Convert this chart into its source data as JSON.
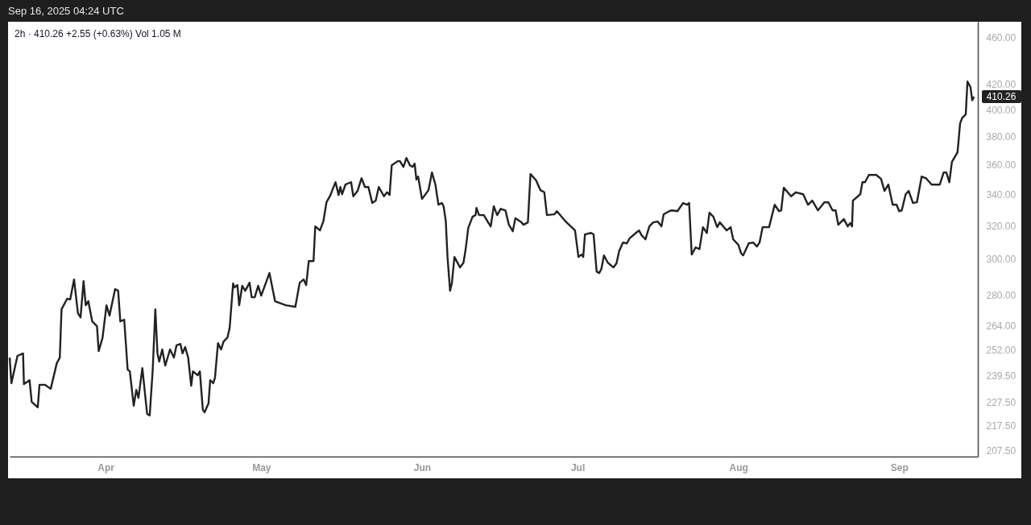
{
  "chart_data": {
    "type": "line",
    "title": "2h · 410.26 +2.55 (+0.63%) Vol 1.05 M",
    "annotations": [
      "Sep 16, 2025 04:24 UTC",
      "410.26"
    ],
    "log": "y",
    "line_style": "solid",
    "marker": "none",
    "xlim": [
      "2025-03-13T12:00",
      "2025-09-16T04:00"
    ],
    "xticks": [
      {
        "value": "2025-04-01T00:00",
        "label": "Apr"
      },
      {
        "value": "2025-05-01T00:00",
        "label": "May"
      },
      {
        "value": "2025-06-01T00:00",
        "label": "Jun"
      },
      {
        "value": "2025-07-01T00:00",
        "label": "Jul"
      },
      {
        "value": "2025-08-01T00:00",
        "label": "Aug"
      },
      {
        "value": "2025-09-01T00:00",
        "label": "Sep"
      }
    ],
    "ylim": [
      205,
      474
    ],
    "yticks": [
      {
        "value": 207.5,
        "label": "207.50"
      },
      {
        "value": 217.5,
        "label": "217.50"
      },
      {
        "value": 227.5,
        "label": "227.50"
      },
      {
        "value": 239.5,
        "label": "239.50"
      },
      {
        "value": 252,
        "label": "252.00"
      },
      {
        "value": 264,
        "label": "264.00"
      },
      {
        "value": 280,
        "label": "280.00"
      },
      {
        "value": 300,
        "label": "300.00"
      },
      {
        "value": 320,
        "label": "320.00"
      },
      {
        "value": 340,
        "label": "340.00"
      },
      {
        "value": 360,
        "label": "360.00"
      },
      {
        "value": 380,
        "label": "380.00"
      },
      {
        "value": 400,
        "label": "400.00"
      },
      {
        "value": 420,
        "label": "420.00"
      },
      {
        "value": 460,
        "label": "460.00"
      }
    ],
    "series": [
      {
        "color": "#222222",
        "x": [
          "2025-03-13T12:00",
          "2025-03-13T20:00",
          "2025-03-15T00:00",
          "2025-03-16T02:00",
          "2025-03-16T06:00",
          "2025-03-17T08:00",
          "2025-03-17T18:00",
          "2025-03-18T22:00",
          "2025-03-19T06:00",
          "2025-03-20T08:00",
          "2025-03-21T10:00",
          "2025-03-22T14:00",
          "2025-03-23T04:00",
          "2025-03-23T12:00",
          "2025-03-24T14:00",
          "2025-03-25T04:00",
          "2025-03-25T22:00",
          "2025-03-26T16:00",
          "2025-03-27T04:00",
          "2025-03-27T18:00",
          "2025-03-28T04:00",
          "2025-03-28T16:00",
          "2025-03-29T10:00",
          "2025-03-30T08:00",
          "2025-03-30T16:00",
          "2025-03-31T10:00",
          "2025-04-01T04:00",
          "2025-04-01T18:00",
          "2025-04-02T20:00",
          "2025-04-03T10:00",
          "2025-04-03T20:00",
          "2025-04-04T14:00",
          "2025-04-05T06:00",
          "2025-04-05T16:00",
          "2025-04-06T10:00",
          "2025-04-06T22:00",
          "2025-04-07T08:00",
          "2025-04-08T02:00",
          "2025-04-09T00:00",
          "2025-04-09T12:00",
          "2025-04-10T02:00",
          "2025-04-10T14:00",
          "2025-04-11T00:00",
          "2025-04-11T08:00",
          "2025-04-11T22:00",
          "2025-04-12T12:00",
          "2025-04-13T10:00",
          "2025-04-14T04:00",
          "2025-04-14T16:00",
          "2025-04-15T10:00",
          "2025-04-15T20:00",
          "2025-04-16T08:00",
          "2025-04-16T22:00",
          "2025-04-17T12:00",
          "2025-04-17T20:00",
          "2025-04-18T18:00",
          "2025-04-19T04:00",
          "2025-04-19T18:00",
          "2025-04-20T02:00",
          "2025-04-20T20:00",
          "2025-04-21T04:00",
          "2025-04-21T18:00",
          "2025-04-22T02:00",
          "2025-04-22T16:00",
          "2025-04-23T06:00",
          "2025-04-23T18:00",
          "2025-04-24T12:00",
          "2025-04-24T22:00",
          "2025-04-25T14:00",
          "2025-04-25T20:00",
          "2025-04-26T10:00",
          "2025-04-26T18:00",
          "2025-04-27T08:00",
          "2025-04-27T22:00",
          "2025-04-28T18:00",
          "2025-04-29T04:00",
          "2025-04-29T18:00",
          "2025-04-30T10:00",
          "2025-05-01T00:00",
          "2025-05-02T14:00",
          "2025-05-03T16:00",
          "2025-05-05T18:00",
          "2025-05-07T14:00",
          "2025-05-08T10:00",
          "2025-05-09T04:00",
          "2025-05-09T16:00",
          "2025-05-10T04:00",
          "2025-05-11T02:00",
          "2025-05-11T10:00",
          "2025-05-12T08:00",
          "2025-05-13T00:00",
          "2025-05-13T14:00",
          "2025-05-14T06:00",
          "2025-05-14T20:00",
          "2025-05-15T08:00",
          "2025-05-15T22:00",
          "2025-05-16T06:00",
          "2025-05-16T14:00",
          "2025-05-17T06:00",
          "2025-05-18T08:00",
          "2025-05-18T18:00",
          "2025-05-19T14:00",
          "2025-05-20T08:00",
          "2025-05-21T00:00",
          "2025-05-21T16:00",
          "2025-05-22T10:00",
          "2025-05-23T02:00",
          "2025-05-23T16:00",
          "2025-05-24T16:00",
          "2025-05-25T06:00",
          "2025-05-25T18:00",
          "2025-05-26T04:00",
          "2025-05-27T08:00",
          "2025-05-27T18:00",
          "2025-05-28T10:00",
          "2025-05-29T00:00",
          "2025-05-29T16:00",
          "2025-05-30T04:00",
          "2025-05-30T14:00",
          "2025-05-30T22:00",
          "2025-05-31T06:00",
          "2025-06-01T00:00",
          "2025-06-02T06:00",
          "2025-06-02T22:00",
          "2025-06-03T14:00",
          "2025-06-04T04:00",
          "2025-06-04T20:00",
          "2025-06-05T04:00",
          "2025-06-05T14:00",
          "2025-06-05T22:00",
          "2025-06-06T10:00",
          "2025-06-06T18:00",
          "2025-06-07T06:00",
          "2025-06-08T08:00",
          "2025-06-09T00:00",
          "2025-06-09T10:00",
          "2025-06-09T22:00",
          "2025-06-10T18:00",
          "2025-06-11T08:00",
          "2025-06-11T12:00",
          "2025-06-12T00:00",
          "2025-06-12T22:00",
          "2025-06-13T18:00",
          "2025-06-14T06:00",
          "2025-06-14T20:00",
          "2025-06-15T12:00",
          "2025-06-16T04:00",
          "2025-06-17T02:00",
          "2025-06-17T18:00",
          "2025-06-18T12:00",
          "2025-06-19T00:00",
          "2025-06-20T04:00",
          "2025-06-20T14:00",
          "2025-06-21T10:00",
          "2025-06-21T22:00",
          "2025-06-23T00:00",
          "2025-06-23T20:00",
          "2025-06-24T14:00",
          "2025-06-25T02:00",
          "2025-06-26T12:00",
          "2025-06-27T00:00",
          "2025-06-28T14:00",
          "2025-06-30T12:00",
          "2025-07-01T04:00",
          "2025-07-01T18:00",
          "2025-07-02T02:00",
          "2025-07-02T10:00",
          "2025-07-03T14:00",
          "2025-07-04T02:00",
          "2025-07-04T16:00",
          "2025-07-05T04:00",
          "2025-07-05T14:00",
          "2025-07-06T02:00",
          "2025-07-06T20:00",
          "2025-07-07T22:00",
          "2025-07-08T12:00",
          "2025-07-09T00:00",
          "2025-07-09T18:00",
          "2025-07-10T12:00",
          "2025-07-11T00:00",
          "2025-07-12T06:00",
          "2025-07-12T20:00",
          "2025-07-13T08:00",
          "2025-07-14T02:00",
          "2025-07-14T20:00",
          "2025-07-15T14:00",
          "2025-07-16T10:00",
          "2025-07-17T04:00",
          "2025-07-17T14:00",
          "2025-07-18T16:00",
          "2025-07-19T04:00",
          "2025-07-20T06:00",
          "2025-07-21T08:00",
          "2025-07-22T02:00",
          "2025-07-22T12:00",
          "2025-07-23T00:00",
          "2025-07-23T18:00",
          "2025-07-24T12:00",
          "2025-07-25T04:00",
          "2025-07-25T22:00",
          "2025-07-26T10:00",
          "2025-07-27T04:00",
          "2025-07-27T22:00",
          "2025-07-28T10:00",
          "2025-07-29T18:00",
          "2025-07-30T12:00",
          "2025-07-31T00:00",
          "2025-08-01T00:00",
          "2025-08-01T12:00",
          "2025-08-01T22:00",
          "2025-08-03T00:00",
          "2025-08-03T20:00",
          "2025-08-04T14:00",
          "2025-08-05T02:00",
          "2025-08-05T16:00",
          "2025-08-06T22:00",
          "2025-08-08T00:00",
          "2025-08-08T20:00",
          "2025-08-09T06:00",
          "2025-08-09T18:00",
          "2025-08-11T04:00",
          "2025-08-12T02:00",
          "2025-08-13T12:00",
          "2025-08-14T10:00",
          "2025-08-15T06:00",
          "2025-08-16T08:00",
          "2025-08-17T14:00",
          "2025-08-18T08:00",
          "2025-08-19T04:00",
          "2025-08-19T18:00",
          "2025-08-20T06:00",
          "2025-08-21T08:00",
          "2025-08-22T02:00",
          "2025-08-22T14:00",
          "2025-08-22T22:00",
          "2025-08-23T02:00",
          "2025-08-24T12:00",
          "2025-08-24T22:00",
          "2025-08-25T10:00",
          "2025-08-26T04:00",
          "2025-08-27T14:00",
          "2025-08-28T12:00",
          "2025-08-29T04:00",
          "2025-08-29T22:00",
          "2025-08-30T18:00",
          "2025-08-31T12:00",
          "2025-09-01T00:00",
          "2025-09-01T12:00",
          "2025-09-02T06:00",
          "2025-09-02T20:00",
          "2025-09-03T16:00",
          "2025-09-04T10:00",
          "2025-09-05T08:00",
          "2025-09-06T04:00",
          "2025-09-07T06:00",
          "2025-09-08T20:00",
          "2025-09-09T14:00",
          "2025-09-10T02:00",
          "2025-09-10T16:00",
          "2025-09-11T04:00",
          "2025-09-12T06:00",
          "2025-09-12T18:00",
          "2025-09-13T04:00",
          "2025-09-13T20:00",
          "2025-09-14T04:00",
          "2025-09-14T18:00",
          "2025-09-15T02:00",
          "2025-09-15T10:00"
        ],
        "values": [
          248.1,
          236.1,
          248.9,
          250.1,
          235.7,
          237.5,
          227.8,
          225.4,
          235.4,
          235.4,
          233.6,
          245.4,
          248.1,
          272.3,
          277.9,
          277.5,
          288.4,
          270.2,
          268.1,
          287.5,
          274.4,
          276.6,
          266.0,
          263.6,
          251.2,
          257.9,
          274.4,
          269.0,
          283.1,
          282.2,
          266.0,
          266.9,
          242.4,
          241.6,
          226.1,
          233.1,
          229.6,
          243.1,
          222.6,
          221.9,
          242.4,
          272.3,
          250.1,
          246.2,
          252.0,
          244.3,
          252.0,
          248.1,
          254.0,
          254.7,
          250.1,
          253.2,
          248.1,
          235.0,
          241.6,
          239.8,
          241.6,
          224.3,
          223.3,
          227.1,
          237.5,
          236.1,
          238.6,
          255.1,
          252.0,
          255.9,
          257.9,
          262.8,
          286.2,
          284.0,
          285.3,
          274.4,
          284.9,
          282.2,
          286.6,
          278.7,
          278.7,
          284.9,
          279.6,
          292.0,
          276.6,
          274.4,
          273.6,
          286.6,
          288.4,
          285.3,
          298.8,
          298.8,
          319.5,
          317.0,
          322.9,
          334.7,
          338.6,
          343.7,
          347.9,
          339.4,
          344.7,
          339.9,
          346.3,
          347.9,
          338.6,
          342.1,
          350.6,
          344.7,
          344.7,
          334.2,
          335.8,
          344.7,
          338.6,
          341.2,
          339.4,
          359.4,
          362.3,
          362.3,
          358.3,
          364.5,
          359.4,
          358.3,
          360.6,
          349.7,
          351.7,
          336.8,
          342.6,
          354.5,
          346.3,
          333.1,
          334.2,
          332.1,
          322.9,
          301.2,
          282.2,
          286.2,
          301.2,
          295.2,
          297.9,
          305.8,
          318.5,
          325.5,
          326.5,
          331.1,
          326.5,
          326.5,
          322.0,
          319.5,
          332.1,
          326.5,
          330.5,
          329.5,
          320.5,
          316.5,
          324.5,
          322.0,
          320.5,
          322.0,
          353.4,
          349.1,
          342.6,
          341.2,
          326.5,
          327.0,
          329.0,
          322.9,
          317.0,
          301.2,
          302.6,
          301.2,
          314.6,
          315.5,
          314.6,
          292.9,
          292.0,
          294.3,
          302.1,
          297.9,
          295.2,
          297.5,
          304.5,
          309.7,
          309.2,
          312.1,
          315.5,
          317.0,
          314.1,
          311.6,
          319.5,
          322.0,
          322.5,
          319.5,
          327.0,
          329.0,
          329.5,
          329.0,
          334.2,
          333.1,
          334.2,
          302.6,
          306.8,
          305.8,
          319.0,
          315.5,
          328.0,
          325.5,
          319.0,
          322.0,
          317.0,
          319.0,
          311.6,
          308.3,
          303.5,
          302.1,
          309.2,
          309.7,
          307.3,
          309.7,
          319.0,
          319.0,
          333.1,
          329.0,
          329.5,
          344.2,
          338.6,
          341.2,
          339.9,
          333.1,
          335.8,
          329.5,
          334.7,
          334.7,
          329.5,
          329.5,
          320.5,
          324.0,
          319.5,
          321.5,
          319.5,
          335.8,
          339.9,
          347.9,
          347.9,
          352.8,
          352.8,
          350.1,
          342.1,
          346.3,
          333.1,
          333.1,
          329.0,
          329.5,
          339.9,
          342.1,
          334.2,
          334.7,
          351.7,
          350.6,
          346.3,
          346.3,
          354.5,
          354.5,
          347.9,
          361.7,
          368.5,
          389.7,
          393.9,
          396.4,
          422.4,
          417.8,
          407.4,
          410.26
        ]
      }
    ]
  }
}
